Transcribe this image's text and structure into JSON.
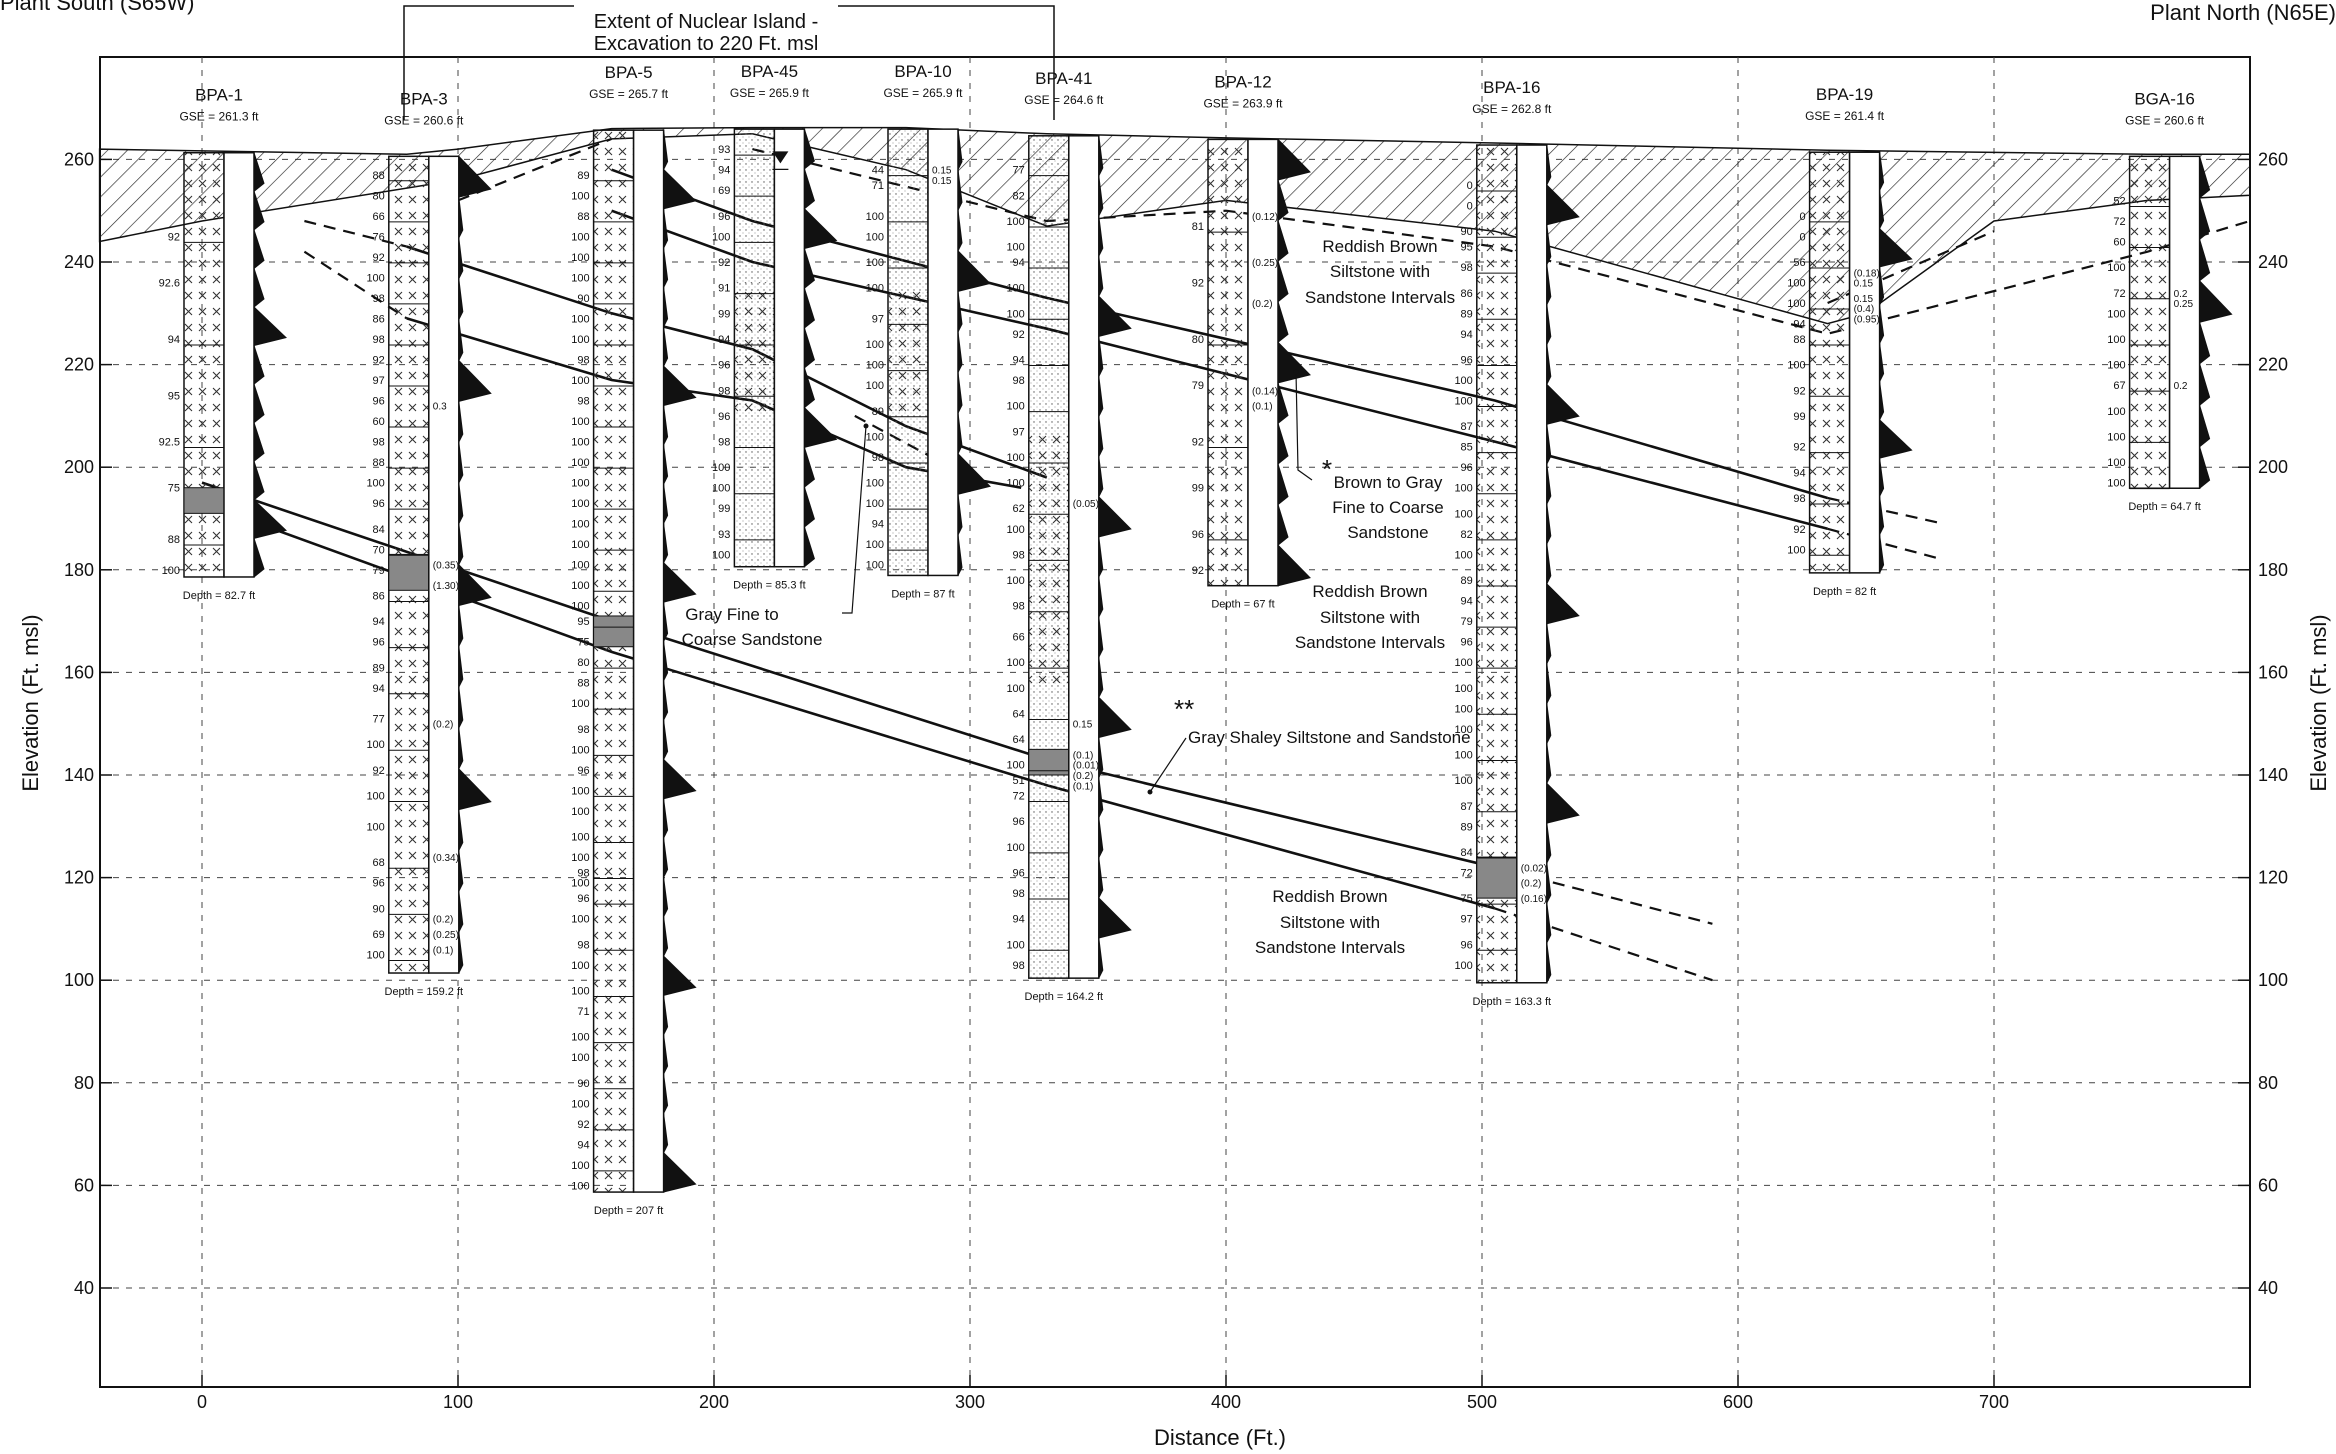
{
  "header": {
    "left_title": "Plant South (S65W)",
    "right_title": "Plant North (N65E)",
    "excavation_note_line1": "Extent of Nuclear Island -",
    "excavation_note_line2": "Excavation to 220 Ft. msl"
  },
  "axes": {
    "x_label": "Distance (Ft.)",
    "y_label_left": "Elevation (Ft. msl)",
    "y_label_right": "Elevation (Ft. msl)",
    "x_ticks": [
      0,
      100,
      200,
      300,
      400,
      500,
      600,
      700
    ],
    "y_ticks": [
      40,
      60,
      80,
      100,
      120,
      140,
      160,
      180,
      200,
      220,
      240,
      260
    ],
    "x_range": [
      -40,
      800
    ],
    "y_range": [
      20,
      280
    ]
  },
  "borings": [
    {
      "id": "BPA-1",
      "gse": "GSE = 261.3 ft",
      "top": 261.3,
      "depth_label": "Depth = 82.7 ft",
      "bottom": 178.6,
      "x": 0,
      "shaded": [
        [
          191,
          196
        ]
      ],
      "fill": "x",
      "rqd": [
        [
          "92",
          245
        ],
        [
          "92.6",
          236
        ],
        [
          "94",
          225
        ],
        [
          "95",
          214
        ],
        [
          "92.5",
          205
        ],
        [
          "75",
          196
        ],
        [
          "88",
          186
        ],
        [
          "100",
          180
        ]
      ]
    },
    {
      "id": "BPA-3",
      "gse": "GSE = 260.6 ft",
      "top": 260.6,
      "depth_label": "Depth = 159.2 ft",
      "bottom": 101.4,
      "x": 80,
      "shaded": [
        [
          176,
          183
        ]
      ],
      "fill": "x",
      "rqd": [
        [
          "88",
          257
        ],
        [
          "80",
          253
        ],
        [
          "66",
          249
        ],
        [
          "76",
          245
        ],
        [
          "92",
          241
        ],
        [
          "100",
          237
        ],
        [
          "98",
          233
        ],
        [
          "86",
          229
        ],
        [
          "98",
          225
        ],
        [
          "92",
          221
        ],
        [
          "97",
          217
        ],
        [
          "96",
          213
        ],
        [
          "60",
          209
        ],
        [
          "98",
          205
        ],
        [
          "88",
          201
        ],
        [
          "100",
          197
        ],
        [
          "96",
          193
        ],
        [
          "84",
          188
        ],
        [
          "70",
          184
        ],
        [
          "79",
          180
        ],
        [
          "86",
          175
        ],
        [
          "94",
          170
        ],
        [
          "96",
          166
        ],
        [
          "89",
          161
        ],
        [
          "94",
          157
        ],
        [
          "77",
          151
        ],
        [
          "100",
          146
        ],
        [
          "92",
          141
        ],
        [
          "100",
          136
        ],
        [
          "100",
          130
        ],
        [
          "68",
          123
        ],
        [
          "96",
          119
        ],
        [
          "90",
          114
        ],
        [
          "69",
          109
        ],
        [
          "100",
          105
        ]
      ],
      "notes": [
        [
          "0.3",
          212
        ],
        [
          "(0.35)",
          181
        ],
        [
          "(1.30)",
          177
        ],
        [
          "(0.2)",
          150
        ],
        [
          "(0.34)",
          124
        ],
        [
          "(0.2)",
          112
        ],
        [
          "(0.25)",
          109
        ],
        [
          "(0.1)",
          106
        ]
      ]
    },
    {
      "id": "BPA-5",
      "gse": "GSE = 265.7 ft",
      "top": 265.7,
      "depth_label": "Depth = 207 ft",
      "bottom": 58.7,
      "x": 160,
      "shaded": [
        [
          165,
          171
        ]
      ],
      "fill": "x",
      "rqd": [
        [
          "89",
          257
        ],
        [
          "100",
          253
        ],
        [
          "88",
          249
        ],
        [
          "100",
          245
        ],
        [
          "100",
          241
        ],
        [
          "100",
          237
        ],
        [
          "90",
          233
        ],
        [
          "100",
          229
        ],
        [
          "100",
          225
        ],
        [
          "98",
          221
        ],
        [
          "100",
          217
        ],
        [
          "98",
          213
        ],
        [
          "100",
          209
        ],
        [
          "100",
          205
        ],
        [
          "100",
          201
        ],
        [
          "100",
          197
        ],
        [
          "100",
          193
        ],
        [
          "100",
          189
        ],
        [
          "100",
          185
        ],
        [
          "100",
          181
        ],
        [
          "100",
          177
        ],
        [
          "100",
          173
        ],
        [
          "95",
          170
        ],
        [
          "75",
          166
        ],
        [
          "80",
          162
        ],
        [
          "88",
          158
        ],
        [
          "100",
          154
        ],
        [
          "98",
          149
        ],
        [
          "100",
          145
        ],
        [
          "96",
          141
        ],
        [
          "100",
          137
        ],
        [
          "100",
          133
        ],
        [
          "100",
          128
        ],
        [
          "100",
          124
        ],
        [
          "98",
          121
        ],
        [
          "100",
          119
        ],
        [
          "96",
          116
        ],
        [
          "100",
          112
        ],
        [
          "98",
          107
        ],
        [
          "100",
          103
        ],
        [
          "100",
          98
        ],
        [
          "71",
          94
        ],
        [
          "100",
          89
        ],
        [
          "100",
          85
        ],
        [
          "90",
          80
        ],
        [
          "100",
          76
        ],
        [
          "92",
          72
        ],
        [
          "94",
          68
        ],
        [
          "100",
          64
        ],
        [
          "100",
          60
        ]
      ]
    },
    {
      "id": "BPA-45",
      "gse": "GSE = 265.9 ft",
      "top": 265.9,
      "depth_label": "Depth = 85.3 ft",
      "bottom": 180.6,
      "x": 215,
      "shaded": [],
      "fill": "mixed",
      "rqd": [
        [
          "93",
          262
        ],
        [
          "94",
          258
        ],
        [
          "69",
          254
        ],
        [
          "96",
          249
        ],
        [
          "100",
          245
        ],
        [
          "92",
          240
        ],
        [
          "91",
          235
        ],
        [
          "99",
          230
        ],
        [
          "94",
          225
        ],
        [
          "96",
          220
        ],
        [
          "98",
          215
        ],
        [
          "96",
          210
        ],
        [
          "98",
          205
        ],
        [
          "100",
          200
        ],
        [
          "100",
          196
        ],
        [
          "99",
          192
        ],
        [
          "93",
          187
        ],
        [
          "100",
          183
        ]
      ]
    },
    {
      "id": "BPA-10",
      "gse": "GSE = 265.9 ft",
      "top": 265.9,
      "depth_label": "Depth = 87 ft",
      "bottom": 178.9,
      "x": 275,
      "shaded": [],
      "fill": "mixed",
      "rqd": [
        [
          "44",
          258
        ],
        [
          "71",
          255
        ],
        [
          "100",
          249
        ],
        [
          "100",
          245
        ],
        [
          "100",
          240
        ],
        [
          "100",
          235
        ],
        [
          "97",
          229
        ],
        [
          "100",
          224
        ],
        [
          "100",
          220
        ],
        [
          "100",
          216
        ],
        [
          "89",
          211
        ],
        [
          "100",
          206
        ],
        [
          "98",
          202
        ],
        [
          "100",
          197
        ],
        [
          "100",
          193
        ],
        [
          "94",
          189
        ],
        [
          "100",
          185
        ],
        [
          "100",
          181
        ]
      ],
      "notes": [
        [
          "0.15",
          258
        ],
        [
          "0.15",
          256
        ]
      ]
    },
    {
      "id": "BPA-41",
      "gse": "GSE = 264.6 ft",
      "top": 264.6,
      "depth_label": "Depth = 164.2 ft",
      "bottom": 100.4,
      "x": 330,
      "shaded": [
        [
          140,
          145
        ]
      ],
      "fill": "mixed",
      "rqd": [
        [
          "77",
          258
        ],
        [
          "82",
          253
        ],
        [
          "100",
          248
        ],
        [
          "100",
          243
        ],
        [
          "94",
          240
        ],
        [
          "100",
          235
        ],
        [
          "100",
          230
        ],
        [
          "92",
          226
        ],
        [
          "94",
          221
        ],
        [
          "98",
          217
        ],
        [
          "100",
          212
        ],
        [
          "97",
          207
        ],
        [
          "100",
          202
        ],
        [
          "100",
          197
        ],
        [
          "62",
          192
        ],
        [
          "100",
          188
        ],
        [
          "98",
          183
        ],
        [
          "100",
          178
        ],
        [
          "98",
          173
        ],
        [
          "66",
          167
        ],
        [
          "100",
          162
        ],
        [
          "100",
          157
        ],
        [
          "64",
          152
        ],
        [
          "64",
          147
        ],
        [
          "100",
          142
        ],
        [
          "51",
          139
        ],
        [
          "72",
          136
        ],
        [
          "96",
          131
        ],
        [
          "100",
          126
        ],
        [
          "96",
          121
        ],
        [
          "98",
          117
        ],
        [
          "94",
          112
        ],
        [
          "100",
          107
        ],
        [
          "98",
          103
        ]
      ],
      "notes": [
        [
          "(0.05)",
          193
        ],
        [
          "0.15",
          150
        ],
        [
          "(0.1)",
          144
        ],
        [
          "(0.01)",
          142
        ],
        [
          "(0.2)",
          140
        ],
        [
          "(0.1)",
          138
        ]
      ]
    },
    {
      "id": "BPA-12",
      "gse": "GSE = 263.9 ft",
      "top": 263.9,
      "depth_label": "Depth = 67 ft",
      "bottom": 176.9,
      "x": 400,
      "shaded": [],
      "fill": "x",
      "rqd": [
        [
          "81",
          247
        ],
        [
          "92",
          236
        ],
        [
          "80",
          225
        ],
        [
          "79",
          216
        ],
        [
          "92",
          205
        ],
        [
          "99",
          196
        ],
        [
          "96",
          187
        ],
        [
          "92",
          180
        ]
      ],
      "notes": [
        [
          "(0.12)",
          249
        ],
        [
          "(0.25)",
          240
        ],
        [
          "(0.2)",
          232
        ],
        [
          "(0.14)",
          215
        ],
        [
          "(0.1)",
          212
        ]
      ]
    },
    {
      "id": "BPA-16",
      "gse": "GSE = 262.8 ft",
      "top": 262.8,
      "depth_label": "Depth = 163.3 ft",
      "bottom": 99.5,
      "x": 505,
      "shaded": [
        [
          116,
          124
        ]
      ],
      "fill": "x",
      "rqd": [
        [
          "0",
          255
        ],
        [
          "0",
          251
        ],
        [
          "90",
          246
        ],
        [
          "95",
          243
        ],
        [
          "98",
          239
        ],
        [
          "86",
          234
        ],
        [
          "89",
          230
        ],
        [
          "94",
          226
        ],
        [
          "96",
          221
        ],
        [
          "100",
          217
        ],
        [
          "100",
          213
        ],
        [
          "87",
          208
        ],
        [
          "85",
          204
        ],
        [
          "96",
          200
        ],
        [
          "100",
          196
        ],
        [
          "100",
          191
        ],
        [
          "82",
          187
        ],
        [
          "100",
          183
        ],
        [
          "89",
          178
        ],
        [
          "94",
          174
        ],
        [
          "79",
          170
        ],
        [
          "96",
          166
        ],
        [
          "100",
          162
        ],
        [
          "100",
          157
        ],
        [
          "100",
          153
        ],
        [
          "100",
          149
        ],
        [
          "100",
          144
        ],
        [
          "100",
          139
        ],
        [
          "87",
          134
        ],
        [
          "89",
          130
        ],
        [
          "84",
          125
        ],
        [
          "72",
          121
        ],
        [
          "75",
          116
        ],
        [
          "97",
          112
        ],
        [
          "96",
          107
        ],
        [
          "100",
          103
        ]
      ],
      "notes": [
        [
          "(0.02)",
          122
        ],
        [
          "(0.2)",
          119
        ],
        [
          "(0.16)",
          116
        ]
      ]
    },
    {
      "id": "BPA-19",
      "gse": "GSE = 261.4 ft",
      "top": 261.4,
      "depth_label": "Depth = 82 ft",
      "bottom": 179.4,
      "x": 635,
      "shaded": [],
      "fill": "x",
      "rqd": [
        [
          "0",
          249
        ],
        [
          "0",
          245
        ],
        [
          "56",
          240
        ],
        [
          "100",
          236
        ],
        [
          "100",
          232
        ],
        [
          "94",
          228
        ],
        [
          "88",
          225
        ],
        [
          "100",
          220
        ],
        [
          "92",
          215
        ],
        [
          "99",
          210
        ],
        [
          "92",
          204
        ],
        [
          "94",
          199
        ],
        [
          "98",
          194
        ],
        [
          "92",
          188
        ],
        [
          "100",
          184
        ]
      ],
      "notes": [
        [
          "(0.18)",
          238
        ],
        [
          "0.15",
          236
        ],
        [
          "0.15",
          233
        ],
        [
          "(0.4)",
          231
        ],
        [
          "(0.95)",
          229
        ]
      ]
    },
    {
      "id": "BGA-16",
      "gse": "GSE = 260.6 ft",
      "top": 260.6,
      "depth_label": "Depth = 64.7 ft",
      "bottom": 195.9,
      "x": 760,
      "shaded": [],
      "fill": "x",
      "rqd": [
        [
          "52",
          252
        ],
        [
          "72",
          248
        ],
        [
          "60",
          244
        ],
        [
          "100",
          239
        ],
        [
          "72",
          234
        ],
        [
          "100",
          230
        ],
        [
          "100",
          225
        ],
        [
          "100",
          220
        ],
        [
          "67",
          216
        ],
        [
          "100",
          211
        ],
        [
          "100",
          206
        ],
        [
          "100",
          201
        ],
        [
          "100",
          197
        ]
      ],
      "notes": [
        [
          "0.2",
          234
        ],
        [
          "0.25",
          232
        ],
        [
          "0.2",
          216
        ]
      ]
    }
  ],
  "annotations": {
    "reddish_upper": [
      "Reddish Brown",
      "Siltstone with",
      "Sandstone Intervals"
    ],
    "reddish_middle": [
      "Reddish Brown",
      "Siltstone with",
      "Sandstone Intervals"
    ],
    "reddish_lower": [
      "Reddish Brown",
      "Siltstone with",
      "Sandstone Intervals"
    ],
    "brown_gray": [
      "Brown to Gray",
      "Fine to Coarse",
      "Sandstone"
    ],
    "gray_fine": [
      "Gray Fine to",
      "Coarse Sandstone"
    ],
    "gray_shaley": "Gray Shaley Siltstone and Sandstone",
    "star1": "*",
    "star2": "**"
  },
  "contacts": {
    "upper_pair_top": [
      [
        0,
        0
      ],
      [
        0,
        0
      ]
    ],
    "note": ""
  }
}
